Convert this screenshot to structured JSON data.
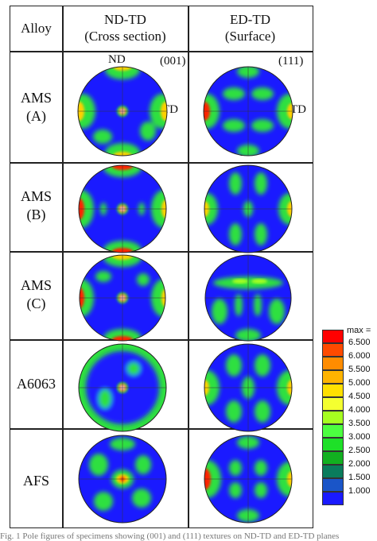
{
  "table": {
    "header": {
      "alloy": "Alloy",
      "col1_line1": "ND-TD",
      "col1_line2": "(Cross section)",
      "col2_line1": "ED-TD",
      "col2_line2": "(Surface)"
    },
    "rows": [
      {
        "line1": "AMS",
        "line2": "(A)"
      },
      {
        "line1": "AMS",
        "line2": "(B)"
      },
      {
        "line1": "AMS",
        "line2": "(C)"
      },
      {
        "line1": "A6063",
        "line2": ""
      },
      {
        "line1": "AFS",
        "line2": ""
      }
    ],
    "annotations": {
      "nd": "ND",
      "td1": "TD",
      "td2": "TD",
      "ed": "ED",
      "plane1": "(001)",
      "plane2": "(111)"
    }
  },
  "legend": {
    "title": "max =",
    "entries": [
      {
        "value": "6.500",
        "color": "#ff0000"
      },
      {
        "value": "6.000",
        "color": "#ff4a00"
      },
      {
        "value": "5.500",
        "color": "#ff8c00"
      },
      {
        "value": "5.000",
        "color": "#ffb400"
      },
      {
        "value": "4.500",
        "color": "#ffe000"
      },
      {
        "value": "4.000",
        "color": "#f4ff30"
      },
      {
        "value": "3.500",
        "color": "#a6ff20"
      },
      {
        "value": "3.000",
        "color": "#4cff40"
      },
      {
        "value": "2.500",
        "color": "#1ee028"
      },
      {
        "value": "2.000",
        "color": "#12b020"
      },
      {
        "value": "1.500",
        "color": "#0a7c5c"
      },
      {
        "value": "1.000",
        "color": "#1a55c8"
      },
      {
        "value": "",
        "color": "#1a1aff"
      }
    ]
  },
  "caption": "Fig. 1  Pole figures of specimens showing (001) and (111) textures on ND-TD and ED-TD planes"
}
